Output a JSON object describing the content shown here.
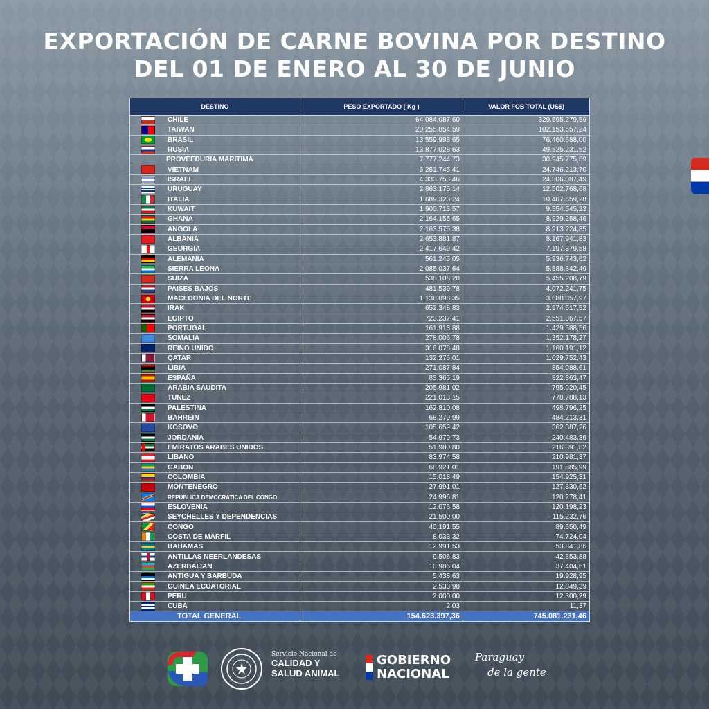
{
  "title": {
    "line1": "EXPORTACIÓN DE CARNE BOVINA POR DESTINO",
    "line2": "DEL 01 DE ENERO AL 30 DE JUNIO"
  },
  "table": {
    "headers": [
      "DESTINO",
      "PESO EXPORTADO ( Kg )",
      "VALOR FOB TOTAL (US$)"
    ],
    "rows": [
      {
        "flag": "chile",
        "destino": "CHILE",
        "peso": "64.084.087,60",
        "valor": "329.595.279,59"
      },
      {
        "flag": "taiwan",
        "destino": "TAIWAN",
        "peso": "20.255.854,59",
        "valor": "102.153.557,24"
      },
      {
        "flag": "brasil",
        "destino": "BRASIL",
        "peso": "13.559.998,65",
        "valor": "76.460.688,00"
      },
      {
        "flag": "rusia",
        "destino": "RUSIA",
        "peso": "13.877.028,63",
        "valor": "49.525.231,52"
      },
      {
        "flag": "none",
        "destino": "PROVEEDURIA MARITIMA",
        "peso": "7.777.244,73",
        "valor": "30.945.775,69"
      },
      {
        "flag": "vietnam",
        "destino": "VIETNAM",
        "peso": "6.251.745,41",
        "valor": "24.746.213,70"
      },
      {
        "flag": "israel",
        "destino": "ISRAEL",
        "peso": "4.333.753,46",
        "valor": "24.306.087,49"
      },
      {
        "flag": "uruguay",
        "destino": "URUGUAY",
        "peso": "2.863.175,14",
        "valor": "12.502.768,68"
      },
      {
        "flag": "italia",
        "destino": "ITALIA",
        "peso": "1.689.323,24",
        "valor": "10.407.659,28"
      },
      {
        "flag": "kuwait",
        "destino": "KUWAIT",
        "peso": "1.900.713,57",
        "valor": "9.554.545,23"
      },
      {
        "flag": "ghana",
        "destino": "GHANA",
        "peso": "2.164.155,65",
        "valor": "8.929.258,46"
      },
      {
        "flag": "angola",
        "destino": "ANGOLA",
        "peso": "2.163.575,38",
        "valor": "8.913.224,85"
      },
      {
        "flag": "albania",
        "destino": "ALBANIA",
        "peso": "2.653.881,87",
        "valor": "8.167.941,83"
      },
      {
        "flag": "georgia",
        "destino": "GEORGIA",
        "peso": "2.417.649,42",
        "valor": "7.197.379,58"
      },
      {
        "flag": "alemania",
        "destino": "ALEMANIA",
        "peso": "561.245,05",
        "valor": "5.936.743,62"
      },
      {
        "flag": "sierra-leona",
        "destino": "SIERRA LEONA",
        "peso": "2.085.037,64",
        "valor": "5.588.842,49"
      },
      {
        "flag": "suiza",
        "destino": "SUIZA",
        "peso": "538.108,20",
        "valor": "5.455.208,79"
      },
      {
        "flag": "paises-bajos",
        "destino": "PAISES BAJOS",
        "peso": "481.539,78",
        "valor": "4.072.241,75"
      },
      {
        "flag": "macedonia",
        "destino": "MACEDONIA DEL NORTE",
        "peso": "1.130.098,35",
        "valor": "3.688.057,97"
      },
      {
        "flag": "irak",
        "destino": "IRAK",
        "peso": "652.348,83",
        "valor": "2.974.517,52"
      },
      {
        "flag": "egipto",
        "destino": "EGIPTO",
        "peso": "723.237,41",
        "valor": "2.551.367,57"
      },
      {
        "flag": "portugal",
        "destino": "PORTUGAL",
        "peso": "161.913,88",
        "valor": "1.429.588,56"
      },
      {
        "flag": "somalia",
        "destino": "SOMALIA",
        "peso": "278.006,78",
        "valor": "1.352.178,27"
      },
      {
        "flag": "reino-unido",
        "destino": "REINO UNIDO",
        "peso": "316.078,48",
        "valor": "1.160.191,12"
      },
      {
        "flag": "qatar",
        "destino": "QATAR",
        "peso": "132.276,01",
        "valor": "1.029.752,43"
      },
      {
        "flag": "libia",
        "destino": "LIBIA",
        "peso": "271.087,84",
        "valor": "854.088,61"
      },
      {
        "flag": "espana",
        "destino": "ESPAÑA",
        "peso": "83.365,19",
        "valor": "822.363,47"
      },
      {
        "flag": "arabia-saudita",
        "destino": "ARABIA SAUDITA",
        "peso": "205.981,02",
        "valor": "795.020,45"
      },
      {
        "flag": "tunez",
        "destino": "TUNEZ",
        "peso": "221.013,15",
        "valor": "778.788,13"
      },
      {
        "flag": "palestina",
        "destino": "PALESTINA",
        "peso": "162.810,08",
        "valor": "498.796,25"
      },
      {
        "flag": "bahrein",
        "destino": "BAHREIN",
        "peso": "68.279,99",
        "valor": "484.213,31"
      },
      {
        "flag": "kosovo",
        "destino": "KOSOVO",
        "peso": "105.659,42",
        "valor": "362.387,26"
      },
      {
        "flag": "jordania",
        "destino": "JORDANIA",
        "peso": "54.979,73",
        "valor": "240.483,36"
      },
      {
        "flag": "eau",
        "destino": "EMIRATOS ARABES UNIDOS",
        "peso": "51.980,80",
        "valor": "216.391,82"
      },
      {
        "flag": "libano",
        "destino": "LIBANO",
        "peso": "83.974,58",
        "valor": "210.981,37"
      },
      {
        "flag": "gabon",
        "destino": "GABON",
        "peso": "68.921,01",
        "valor": "191.885,99"
      },
      {
        "flag": "colombia",
        "destino": "COLOMBIA",
        "peso": "15.018,49",
        "valor": "154.925,31"
      },
      {
        "flag": "montenegro",
        "destino": "MONTENEGRO",
        "peso": "27.991,01",
        "valor": "127.330,62"
      },
      {
        "flag": "rdc",
        "destino": "REPUBLICA DEMOCRATICA DEL CONGO",
        "peso": "24.996,81",
        "valor": "120.278,41",
        "small": true
      },
      {
        "flag": "eslovenia",
        "destino": "ESLOVENIA",
        "peso": "12.076,58",
        "valor": "120.198,23"
      },
      {
        "flag": "seychelles",
        "destino": "SEYCHELLES Y DEPENDENCIAS",
        "peso": "21.500,00",
        "valor": "115.232,76"
      },
      {
        "flag": "congo",
        "destino": "CONGO",
        "peso": "40.191,55",
        "valor": "89.650,49"
      },
      {
        "flag": "costa-marfil",
        "destino": "COSTA DE MARFIL",
        "peso": "8.033,32",
        "valor": "74.724,04"
      },
      {
        "flag": "bahamas",
        "destino": "BAHAMAS",
        "peso": "12.991,53",
        "valor": "53.841,86"
      },
      {
        "flag": "antillas",
        "destino": "ANTILLAS NEERLANDESAS",
        "peso": "9.506,83",
        "valor": "42.853,88"
      },
      {
        "flag": "azerbaijan",
        "destino": "AZERBAIJAN",
        "peso": "10.986,04",
        "valor": "37.404,61"
      },
      {
        "flag": "antigua",
        "destino": "ANTIGUA Y BARBUDA",
        "peso": "5.438,63",
        "valor": "19.928,95"
      },
      {
        "flag": "guinea-ecuatorial",
        "destino": "GUINEA ECUATORIAL",
        "peso": "2.533,98",
        "valor": "12.849,39"
      },
      {
        "flag": "peru",
        "destino": "PERU",
        "peso": "2.000,00",
        "valor": "12.300,29"
      },
      {
        "flag": "cuba",
        "destino": "CUBA",
        "peso": "2,03",
        "valor": "11,37"
      }
    ],
    "total": {
      "label": "TOTAL GENERAL",
      "peso": "154.623.397,36",
      "valor": "745.081.231,46"
    }
  },
  "footer": {
    "senacsa_small": "Servicio Nacional de",
    "senacsa_line1": "CALIDAD Y",
    "senacsa_line2": "SALUD ANIMAL",
    "gob_line1": "GOBIERNO",
    "gob_line2": "NACIONAL",
    "py_line1": "Paraguay",
    "py_line2": "de la gente"
  },
  "colors": {
    "header_bg": "#1f3864",
    "total_bg": "#4472c4"
  }
}
